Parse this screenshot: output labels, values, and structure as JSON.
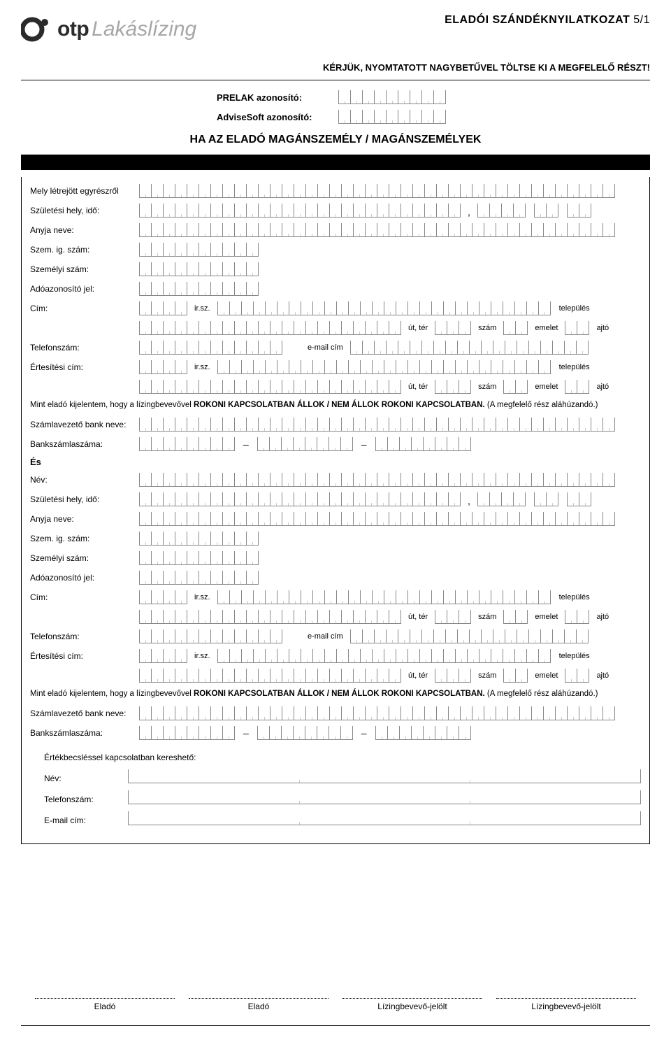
{
  "header": {
    "logo_bold": "otp",
    "logo_light": "Lakáslízing",
    "doc_title": "ELADÓI SZÁNDÉKNYILATKOZAT",
    "page_indicator": "5/1"
  },
  "instruction": "KÉRJÜK, NYOMTATOTT NAGYBETŰVEL TÖLTSE KI A MEGFELELŐ RÉSZT!",
  "ids": {
    "prelak_label": "PRELAK azonosító:",
    "advisesoft_label": "AdviseSoft azonosító:"
  },
  "section_title": "HA AZ ELADÓ MAGÁNSZEMÉLY / MAGÁNSZEMÉLYEK",
  "labels": {
    "mely_letrejott": "Mely létrejött egyrészről",
    "szul_hely_ido": "Születési hely, idő:",
    "anyja_neve": "Anyja neve:",
    "szem_ig": "Szem. ig. szám:",
    "szemelyi_szam": "Személyi szám:",
    "adoazonosito": "Adóazonosító jel:",
    "cim": "Cím:",
    "telefon": "Telefonszám:",
    "ertesitesi": "Értesítési cím:",
    "szamla_bank": "Számlavezető bank neve:",
    "bankszamla": "Bankszámlaszáma:",
    "nev": "Név:",
    "email": "E-mail cím:",
    "es": "És"
  },
  "inline": {
    "irsz": "ir.sz.",
    "telepules": "település",
    "ut_ter": "út, tér",
    "szam": "szám",
    "emelet": "emelet",
    "ajto": "ajtó",
    "email_cim": "e-mail cím"
  },
  "statement": {
    "prefix": "Mint eladó kijelentem, hogy a lízingbevevővel ",
    "bold": "ROKONI KAPCSOLATBAN ÁLLOK / NEM ÁLLOK ROKONI KAPCSOLATBAN.",
    "suffix": " (A megfelelő rész aláhúzandó.)"
  },
  "contact": {
    "title": "Értékbecsléssel kapcsolatban kereshető:",
    "nev": "Név:",
    "telefon": "Telefonszám:",
    "email": "E-mail cím:"
  },
  "signatures": {
    "s1": "Eladó",
    "s2": "Eladó",
    "s3": "Lízingbevevő-jelölt",
    "s4": "Lízingbevevő-jelölt"
  },
  "colors": {
    "text": "#000000",
    "grey_logo": "#a7a7a7",
    "cell_border": "#888888"
  }
}
